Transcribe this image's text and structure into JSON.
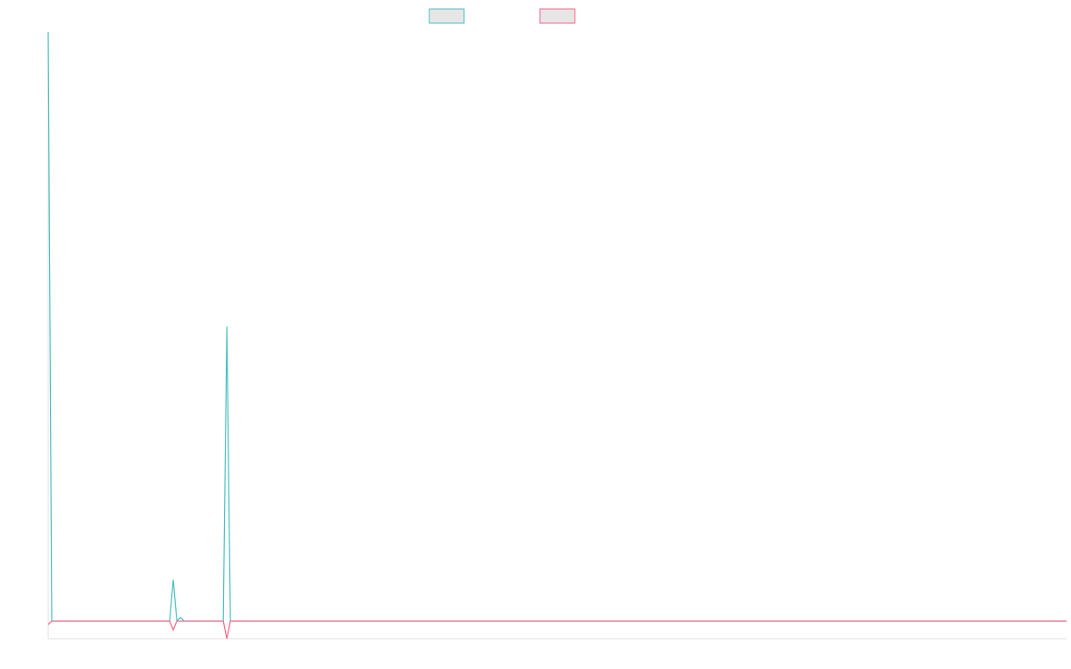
{
  "chart_data": {
    "type": "line",
    "x": [
      0,
      1,
      34,
      35,
      36,
      37,
      38,
      49,
      50,
      51,
      285
    ],
    "xlim": [
      0,
      285
    ],
    "ylim": [
      -3,
      100
    ],
    "series": [
      {
        "color": "#4bc0c0",
        "values": [
          100,
          0,
          0,
          7,
          0,
          0.6,
          0,
          0,
          50,
          0,
          0
        ]
      },
      {
        "color": "#ff6384",
        "values": [
          -0.6,
          0,
          0,
          -1.5,
          0,
          0,
          0,
          0,
          -3,
          0,
          0
        ]
      }
    ]
  }
}
